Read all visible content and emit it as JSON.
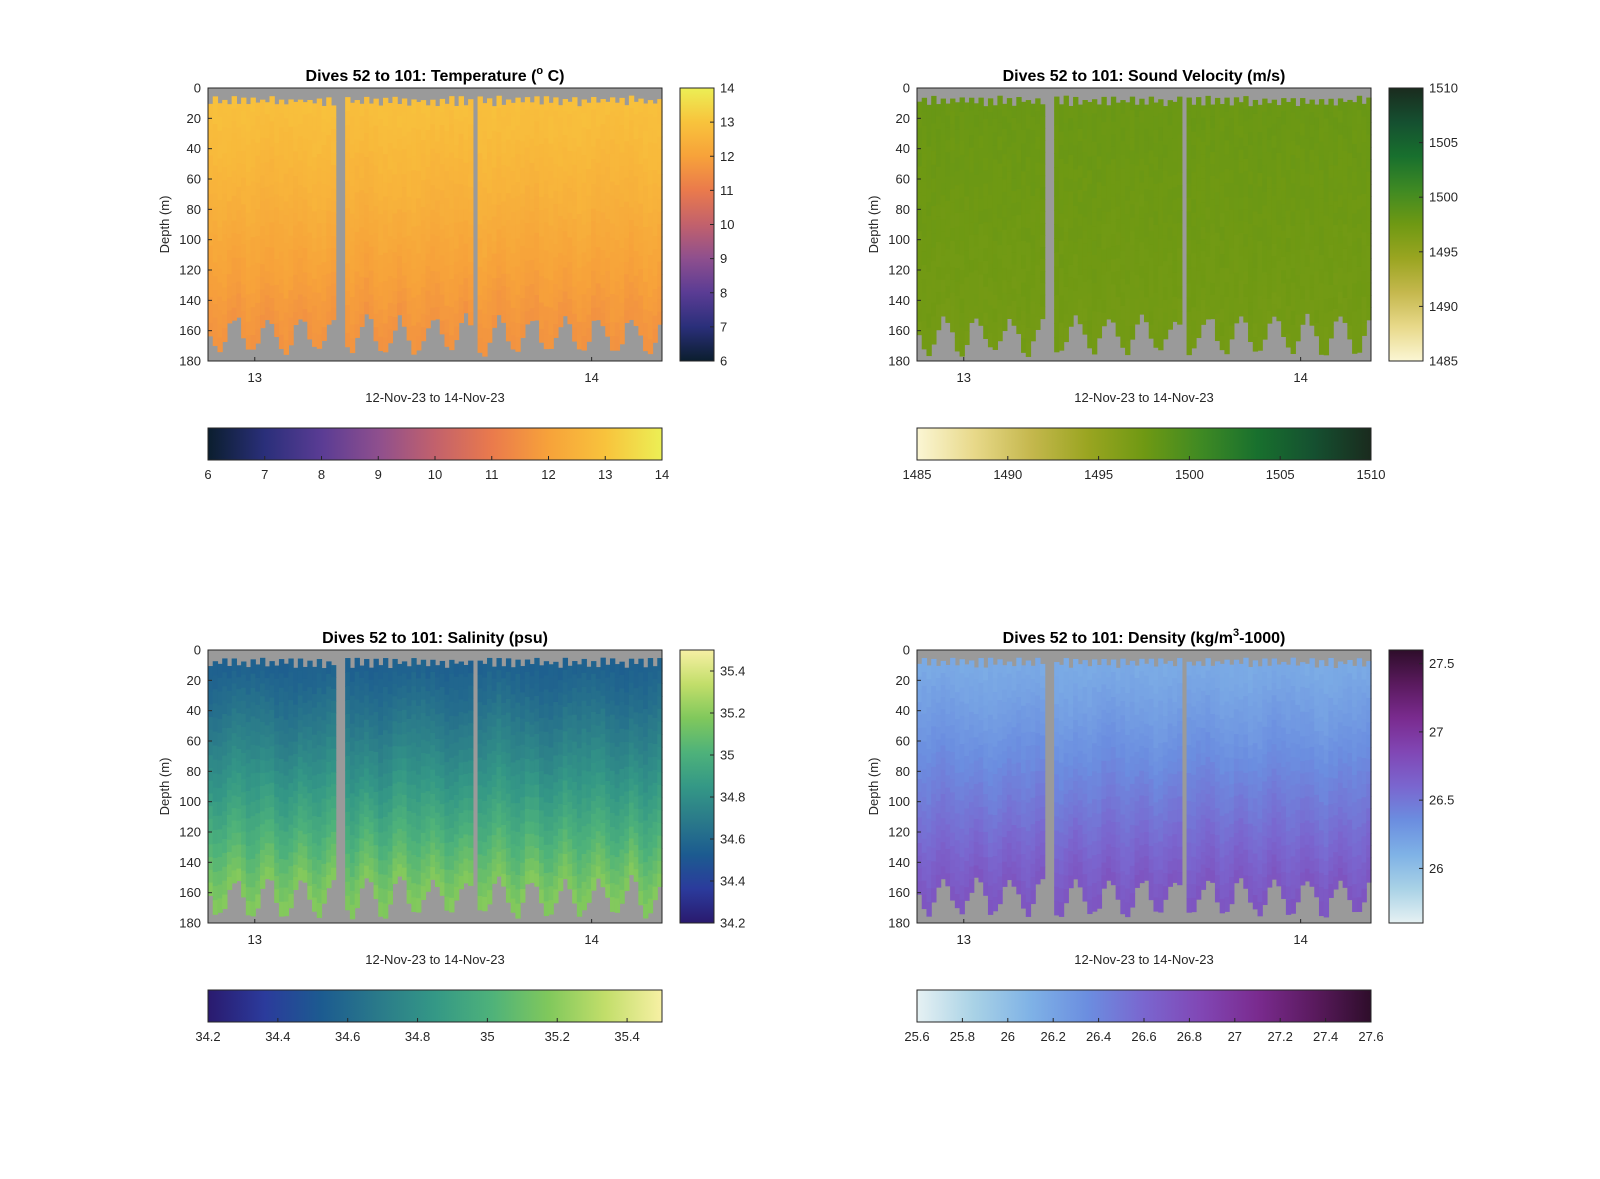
{
  "chart_data": [
    {
      "type": "heatmap",
      "title_main": "Dives 52 to 101: Temperature (",
      "title_sup": "o",
      "title_end": " C)",
      "xlabel": "12-Nov-23 to 14-Nov-23",
      "ylabel": "Depth (m)",
      "ylim": [
        0,
        180
      ],
      "yticks": [
        "0",
        "20",
        "40",
        "60",
        "80",
        "100",
        "120",
        "140",
        "160",
        "180"
      ],
      "xticks": [
        "13",
        "14"
      ],
      "colormap": [
        "#0b1e2e",
        "#2a2f7a",
        "#5a3c94",
        "#8e4f8e",
        "#c2616c",
        "#ea7a4c",
        "#f7a23a",
        "#f8c33c",
        "#ecef55"
      ],
      "colorbar_range": [
        6,
        14
      ],
      "colorbar_ticks": [
        "6",
        "7",
        "8",
        "9",
        "10",
        "11",
        "12",
        "13",
        "14"
      ],
      "h_colorbar_ticks": [
        "6",
        "7",
        "8",
        "9",
        "10",
        "11",
        "12",
        "13",
        "14"
      ],
      "surface_value": 12.9,
      "bottom_value": 11.6,
      "gap_color": "#9a9a9a"
    },
    {
      "type": "heatmap",
      "title_main": "Dives 52 to 101: Sound Velocity (m/s)",
      "title_sup": "",
      "title_end": "",
      "xlabel": "12-Nov-23 to 14-Nov-23",
      "ylabel": "Depth (m)",
      "ylim": [
        0,
        180
      ],
      "yticks": [
        "0",
        "20",
        "40",
        "60",
        "80",
        "100",
        "120",
        "140",
        "160",
        "180"
      ],
      "xticks": [
        "13",
        "14"
      ],
      "colormap": [
        "#fbf6d4",
        "#e8d98a",
        "#c5b84e",
        "#9aa521",
        "#6f9913",
        "#3f8a23",
        "#18702e",
        "#155030",
        "#1a2b1e"
      ],
      "colorbar_range": [
        1485,
        1510
      ],
      "colorbar_ticks": [
        "1485",
        "1490",
        "1495",
        "1500",
        "1505",
        "1510"
      ],
      "h_colorbar_ticks": [
        "1485",
        "1490",
        "1495",
        "1500",
        "1505",
        "1510"
      ],
      "surface_value": 1497.8,
      "bottom_value": 1497.2,
      "gap_color": "#9a9a9a"
    },
    {
      "type": "heatmap",
      "title_main": "Dives 52 to 101: Salinity (psu)",
      "title_sup": "",
      "title_end": "",
      "xlabel": "12-Nov-23 to 14-Nov-23",
      "ylabel": "Depth (m)",
      "ylim": [
        0,
        180
      ],
      "yticks": [
        "0",
        "20",
        "40",
        "60",
        "80",
        "100",
        "120",
        "140",
        "160",
        "180"
      ],
      "xticks": [
        "13",
        "14"
      ],
      "colormap": [
        "#2a1a6e",
        "#2b3b9c",
        "#1c5b90",
        "#2a7a8a",
        "#349886",
        "#4eb27a",
        "#80c85c",
        "#c2de6a",
        "#f7f0a4"
      ],
      "colorbar_range": [
        34.2,
        35.5
      ],
      "colorbar_ticks": [
        "34.2",
        "34.4",
        "34.6",
        "34.8",
        "35",
        "35.2",
        "35.4"
      ],
      "h_colorbar_ticks": [
        "34.2",
        "34.4",
        "34.6",
        "34.8",
        "35",
        "35.2",
        "35.4"
      ],
      "surface_value": 34.55,
      "bottom_value": 35.2,
      "gap_color": "#9a9a9a"
    },
    {
      "type": "heatmap",
      "title_main": "Dives 52 to 101: Density (kg/m",
      "title_sup": "3",
      "title_end": "-1000)",
      "xlabel": "12-Nov-23 to 14-Nov-23",
      "ylabel": "Depth (m)",
      "ylim": [
        0,
        180
      ],
      "yticks": [
        "0",
        "20",
        "40",
        "60",
        "80",
        "100",
        "120",
        "140",
        "160",
        "180"
      ],
      "xticks": [
        "13",
        "14"
      ],
      "colormap": [
        "#e6f1f3",
        "#a9d2e6",
        "#7fb2e6",
        "#6b8ee0",
        "#7a66cf",
        "#8147b5",
        "#7a2b8f",
        "#5a1a5e",
        "#2e0d2a"
      ],
      "colorbar_range": [
        25.6,
        27.6
      ],
      "colorbar_ticks": [
        "26",
        "26.5",
        "27",
        "27.5"
      ],
      "h_colorbar_ticks": [
        "25.6",
        "25.8",
        "26",
        "26.2",
        "26.4",
        "26.6",
        "26.8",
        "27",
        "27.2",
        "27.4",
        "27.6"
      ],
      "surface_value": 26.15,
      "bottom_value": 26.75,
      "gap_color": "#9a9a9a"
    }
  ]
}
